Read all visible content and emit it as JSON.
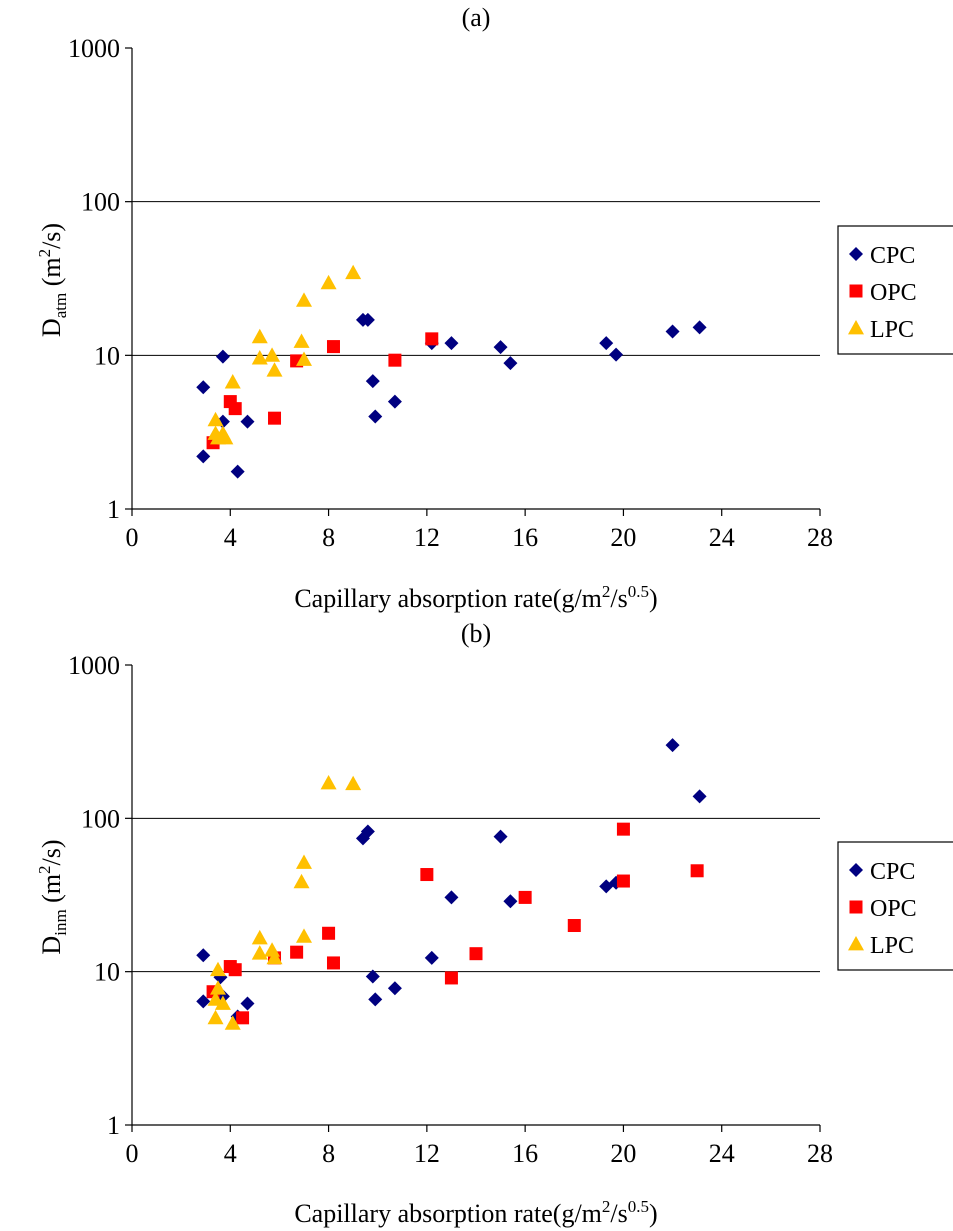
{
  "chart_data": [
    {
      "type": "scatter",
      "title": "(a)",
      "xlabel": "Capillary absorption rate(g/m",
      "xlabel_sup1": "2",
      "xlabel_mid": "/s",
      "xlabel_sup2": "0.5",
      "xlabel_end": ")",
      "ylabel_main": "D",
      "ylabel_sub": "atm",
      "ylabel_unit": " (m",
      "ylabel_sup": "2",
      "ylabel_end": "/s)",
      "xlim": [
        0,
        28
      ],
      "ylim": [
        1,
        1000
      ],
      "yscale": "log",
      "xticks": [
        "0",
        "4",
        "8",
        "12",
        "16",
        "20",
        "24",
        "28"
      ],
      "yticks": [
        "1",
        "10",
        "100",
        "1000"
      ],
      "grid": "horizontal major lines",
      "legend": "right",
      "series": [
        {
          "name": "CPC",
          "marker": "diamond",
          "color": "#000080",
          "points": [
            [
              2.9,
              6.2
            ],
            [
              2.9,
              2.2
            ],
            [
              3.7,
              9.8
            ],
            [
              3.7,
              3.7
            ],
            [
              4.3,
              1.75
            ],
            [
              4.7,
              3.7
            ],
            [
              9.4,
              17
            ],
            [
              9.6,
              17
            ],
            [
              9.8,
              6.8
            ],
            [
              9.9,
              4.0
            ],
            [
              10.7,
              5.0
            ],
            [
              12.2,
              12
            ],
            [
              13.0,
              12
            ],
            [
              15.0,
              11.3
            ],
            [
              15.4,
              8.9
            ],
            [
              19.3,
              12
            ],
            [
              19.7,
              10.1
            ],
            [
              22.0,
              14.3
            ],
            [
              23.1,
              15.2
            ]
          ]
        },
        {
          "name": "OPC",
          "marker": "square",
          "color": "#ff0000",
          "points": [
            [
              3.3,
              2.7
            ],
            [
              4.0,
              5.0
            ],
            [
              4.2,
              4.5
            ],
            [
              5.8,
              3.9
            ],
            [
              6.7,
              9.2
            ],
            [
              8.2,
              11.4
            ],
            [
              10.7,
              9.3
            ],
            [
              12.2,
              12.8
            ]
          ]
        },
        {
          "name": "LPC",
          "marker": "triangle",
          "color": "#ffc000",
          "points": [
            [
              3.4,
              3.8
            ],
            [
              3.4,
              3.1
            ],
            [
              3.5,
              2.9
            ],
            [
              3.7,
              3.1
            ],
            [
              3.8,
              2.9
            ],
            [
              4.1,
              6.7
            ],
            [
              5.2,
              13.2
            ],
            [
              5.2,
              9.6
            ],
            [
              5.7,
              10
            ],
            [
              5.8,
              8.0
            ],
            [
              6.9,
              12.3
            ],
            [
              7.0,
              9.4
            ],
            [
              7.0,
              22.8
            ],
            [
              8.0,
              29.6
            ],
            [
              9.0,
              34.5
            ]
          ]
        }
      ]
    },
    {
      "type": "scatter",
      "title": "(b)",
      "xlabel": "Capillary absorption rate(g/m",
      "xlabel_sup1": "2",
      "xlabel_mid": "/s",
      "xlabel_sup2": "0.5",
      "xlabel_end": ")",
      "ylabel_main": "D",
      "ylabel_sub": "inm",
      "ylabel_unit": " (m",
      "ylabel_sup": "2",
      "ylabel_end": "/s)",
      "xlim": [
        0,
        28
      ],
      "ylim": [
        1,
        1000
      ],
      "yscale": "log",
      "xticks": [
        "0",
        "4",
        "8",
        "12",
        "16",
        "20",
        "24",
        "28"
      ],
      "yticks": [
        "1",
        "10",
        "100",
        "1000"
      ],
      "grid": "horizontal major lines",
      "legend": "right",
      "series": [
        {
          "name": "CPC",
          "marker": "diamond",
          "color": "#000080",
          "points": [
            [
              2.9,
              12.8
            ],
            [
              2.9,
              6.4
            ],
            [
              3.6,
              9.2
            ],
            [
              3.7,
              6.9
            ],
            [
              4.3,
              5.1
            ],
            [
              4.7,
              6.2
            ],
            [
              9.4,
              74
            ],
            [
              9.6,
              82
            ],
            [
              9.8,
              9.3
            ],
            [
              9.9,
              6.6
            ],
            [
              10.7,
              7.8
            ],
            [
              12.2,
              12.3
            ],
            [
              13.0,
              30.5
            ],
            [
              15.0,
              76
            ],
            [
              15.4,
              28.8
            ],
            [
              19.3,
              36
            ],
            [
              19.7,
              38
            ],
            [
              22.0,
              300
            ],
            [
              23.1,
              139
            ]
          ]
        },
        {
          "name": "OPC",
          "marker": "square",
          "color": "#ff0000",
          "points": [
            [
              3.3,
              7.4
            ],
            [
              4.0,
              10.8
            ],
            [
              4.2,
              10.3
            ],
            [
              4.5,
              5.0
            ],
            [
              5.8,
              12.3
            ],
            [
              6.7,
              13.4
            ],
            [
              8.0,
              17.8
            ],
            [
              8.2,
              11.4
            ],
            [
              12.0,
              43
            ],
            [
              13.0,
              9.1
            ],
            [
              14.0,
              13.1
            ],
            [
              16.0,
              30.5
            ],
            [
              18.0,
              20
            ],
            [
              20.0,
              85
            ],
            [
              20.0,
              39
            ],
            [
              23.0,
              45.5
            ]
          ]
        },
        {
          "name": "LPC",
          "marker": "triangle",
          "color": "#ffc000",
          "points": [
            [
              3.4,
              6.6
            ],
            [
              3.4,
              5.0
            ],
            [
              3.5,
              10.3
            ],
            [
              3.5,
              7.8
            ],
            [
              3.7,
              6.2
            ],
            [
              4.1,
              4.6
            ],
            [
              5.2,
              16.6
            ],
            [
              5.2,
              13.2
            ],
            [
              5.7,
              13.8
            ],
            [
              5.8,
              12.3
            ],
            [
              6.9,
              38.5
            ],
            [
              7.0,
              51.5
            ],
            [
              7.0,
              17.0
            ],
            [
              8.0,
              170
            ],
            [
              9.0,
              168
            ]
          ]
        }
      ]
    }
  ]
}
